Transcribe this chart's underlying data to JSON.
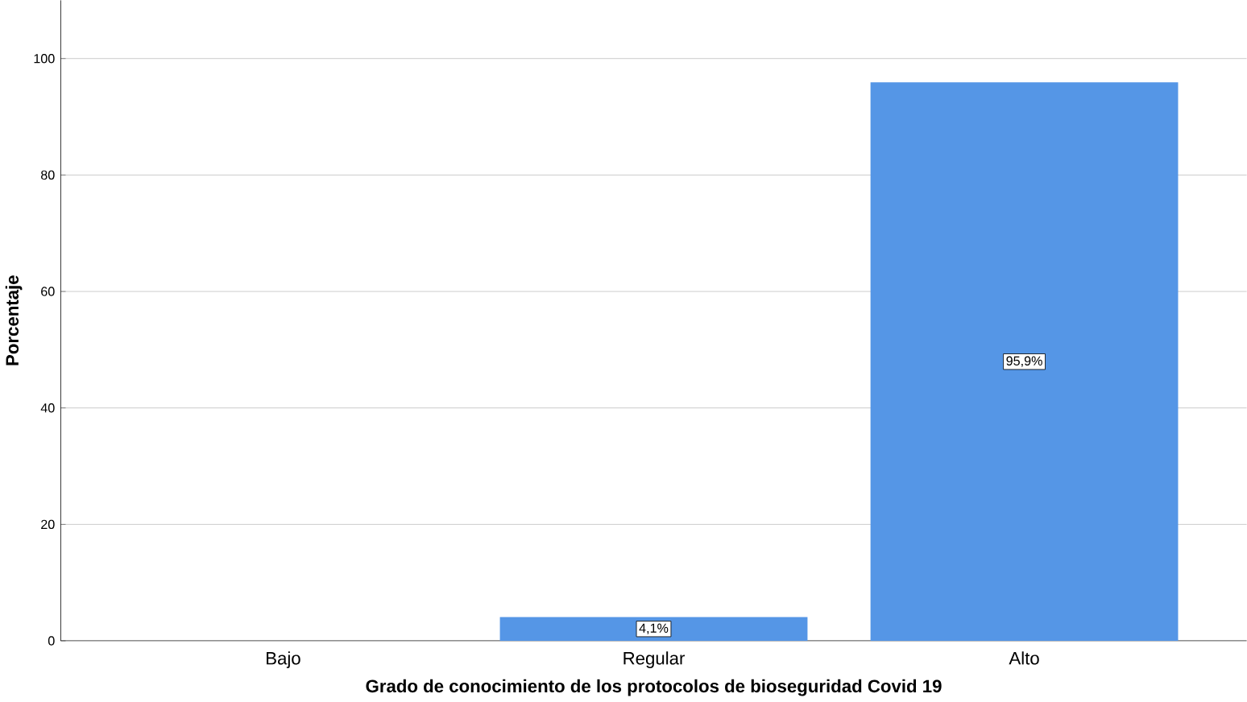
{
  "chart_data": {
    "type": "bar",
    "xlabel": "Grado de conocimiento de los protocolos de bioseguridad Covid 19",
    "ylabel": "Porcentaje",
    "categories": [
      "Bajo",
      "Regular",
      "Alto"
    ],
    "values": [
      0,
      4.1,
      95.9
    ],
    "value_labels": [
      null,
      "4,1%",
      "95,9%"
    ],
    "color": "#5596e6",
    "ylim": [
      0,
      110
    ],
    "yticks": [
      0,
      20,
      40,
      60,
      80,
      100
    ],
    "grid": "y"
  }
}
